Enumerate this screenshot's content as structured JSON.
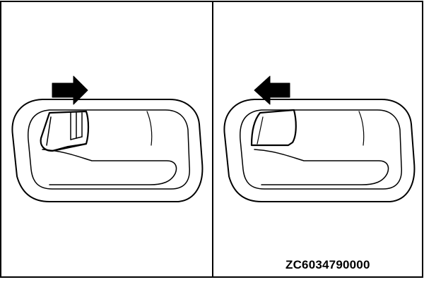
{
  "figure": {
    "reference_code": "ZC6034790000",
    "panels": [
      {
        "id": "left",
        "handle_state": "pulled-open",
        "arrow_direction": "right"
      },
      {
        "id": "right",
        "handle_state": "released",
        "arrow_direction": "left"
      }
    ],
    "colors": {
      "line": "#000000",
      "background": "#ffffff"
    }
  }
}
